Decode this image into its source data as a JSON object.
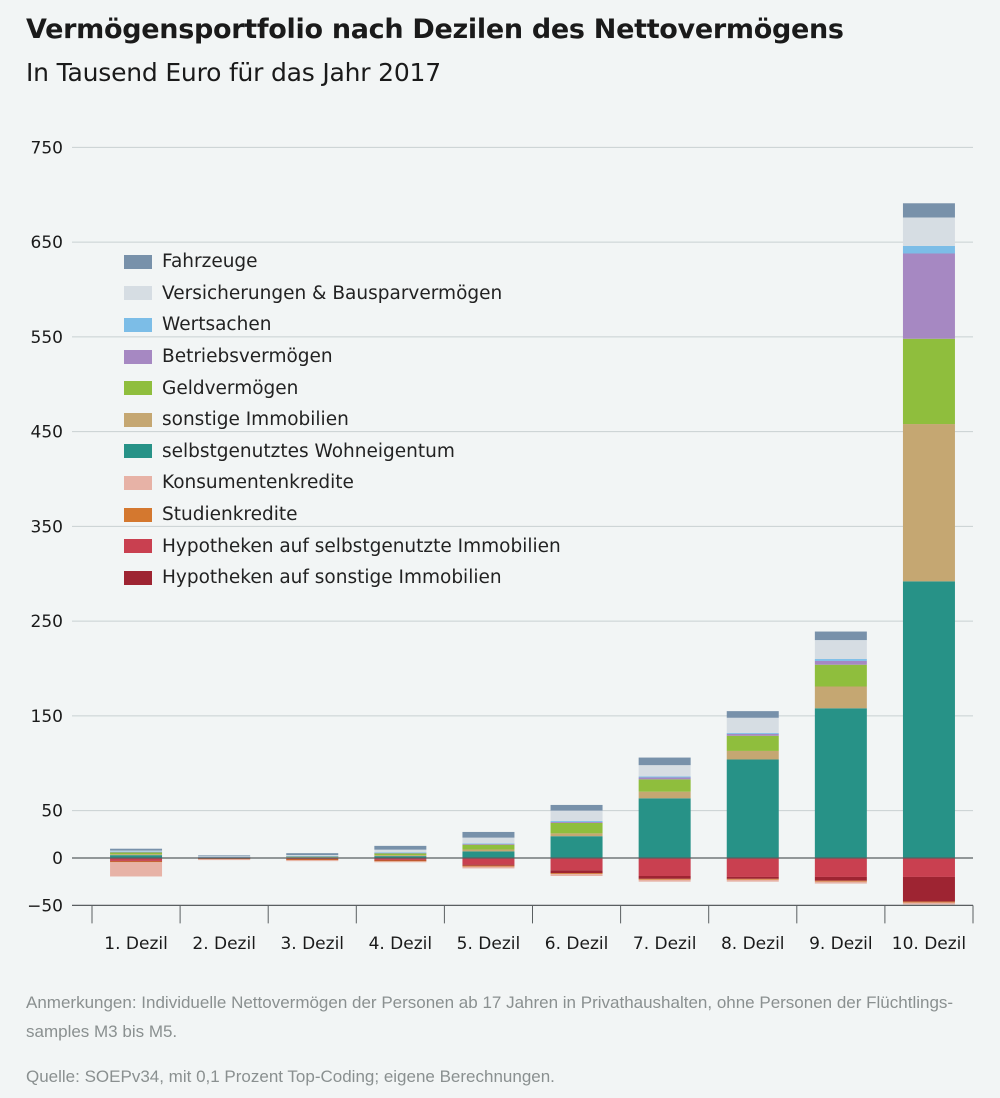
{
  "title": "Vermögensportfolio nach Dezilen des Nettovermögens",
  "subtitle": "In Tausend Euro für das Jahr 2017",
  "notes": {
    "anmerkungen": "Anmerkungen: Individuelle Nettovermögen der Personen ab 17 Jahren in Privathaushalten, ohne Personen der Flüchtlings-samples M3 bis M5.",
    "quelle": "Quelle: SOEPv34, mit 0,1 Prozent Top-Coding; eigene Berechnungen."
  },
  "chart_data": {
    "type": "bar",
    "stacked": true,
    "title": "Vermögensportfolio nach Dezilen des Nettovermögens",
    "subtitle": "In Tausend Euro für das Jahr 2017",
    "categories": [
      "1. Dezil",
      "2. Dezil",
      "3. Dezil",
      "4. Dezil",
      "5. Dezil",
      "6. Dezil",
      "7. Dezil",
      "8. Dezil",
      "9. Dezil",
      "10. Dezil"
    ],
    "ylim": [
      -50,
      750
    ],
    "yticks": [
      -50,
      0,
      50,
      150,
      250,
      350,
      450,
      550,
      650,
      750
    ],
    "ytick_labels": [
      "−50",
      "0",
      "50",
      "150",
      "250",
      "350",
      "450",
      "550",
      "650",
      "750"
    ],
    "grid": true,
    "legend_placement": "top-left",
    "series": [
      {
        "name": "selbstgenutztes Wohneigentum",
        "color": "#279287",
        "values": [
          3,
          0.3,
          0.5,
          2,
          7,
          23,
          63,
          104,
          158,
          292
        ]
      },
      {
        "name": "sonstige Immobilien",
        "color": "#c5a772",
        "values": [
          1,
          0.2,
          0.3,
          1,
          2,
          3,
          7,
          9,
          23,
          166
        ]
      },
      {
        "name": "Geldvermögen",
        "color": "#8fbe3d",
        "values": [
          2,
          0.6,
          1,
          2,
          5,
          11,
          13,
          16,
          23,
          90
        ]
      },
      {
        "name": "Betriebsvermögen",
        "color": "#a688c2",
        "values": [
          0.5,
          0.1,
          0.2,
          0.5,
          1,
          1,
          2,
          2,
          4,
          90
        ]
      },
      {
        "name": "Wertsachen",
        "color": "#7cbde7",
        "values": [
          0.3,
          0.1,
          0.1,
          0.3,
          0.5,
          1,
          1,
          1,
          2,
          8
        ]
      },
      {
        "name": "Versicherungen & Bausparvermögen",
        "color": "#d6dde3",
        "values": [
          1,
          0.5,
          1,
          3,
          6,
          11,
          12,
          16,
          20,
          30
        ]
      },
      {
        "name": "Fahrzeuge",
        "color": "#7891aa",
        "values": [
          2,
          1,
          2,
          4,
          6,
          6,
          8,
          7,
          9,
          15
        ]
      },
      {
        "name": "Hypotheken auf selbstgenutzte Immobilien",
        "color": "#c94050",
        "values": [
          -3,
          -0.5,
          -1,
          -2,
          -7,
          -13,
          -19,
          -20,
          -20,
          -20
        ]
      },
      {
        "name": "Hypotheken auf sonstige Immobilien",
        "color": "#9e2432",
        "values": [
          -0.5,
          -0.2,
          -0.3,
          -0.5,
          -1,
          -3,
          -3,
          -2,
          -4,
          -26
        ]
      },
      {
        "name": "Studienkredite",
        "color": "#d4782f",
        "values": [
          -1,
          -0.5,
          -1,
          -1,
          -1,
          -1,
          -1,
          -1,
          -1,
          -1
        ]
      },
      {
        "name": "Konsumentenkredite",
        "color": "#e7b2a6",
        "values": [
          -15,
          -1,
          -1,
          -1,
          -2,
          -2,
          -2,
          -2,
          -2,
          -2
        ]
      }
    ],
    "legend_order": [
      "Fahrzeuge",
      "Versicherungen & Bausparvermögen",
      "Wertsachen",
      "Betriebsvermögen",
      "Geldvermögen",
      "sonstige Immobilien",
      "selbstgenutztes Wohneigentum",
      "Konsumentenkredite",
      "Studienkredite",
      "Hypotheken auf selbstgenutzte Immobilien",
      "Hypotheken auf sonstige Immobilien"
    ]
  }
}
